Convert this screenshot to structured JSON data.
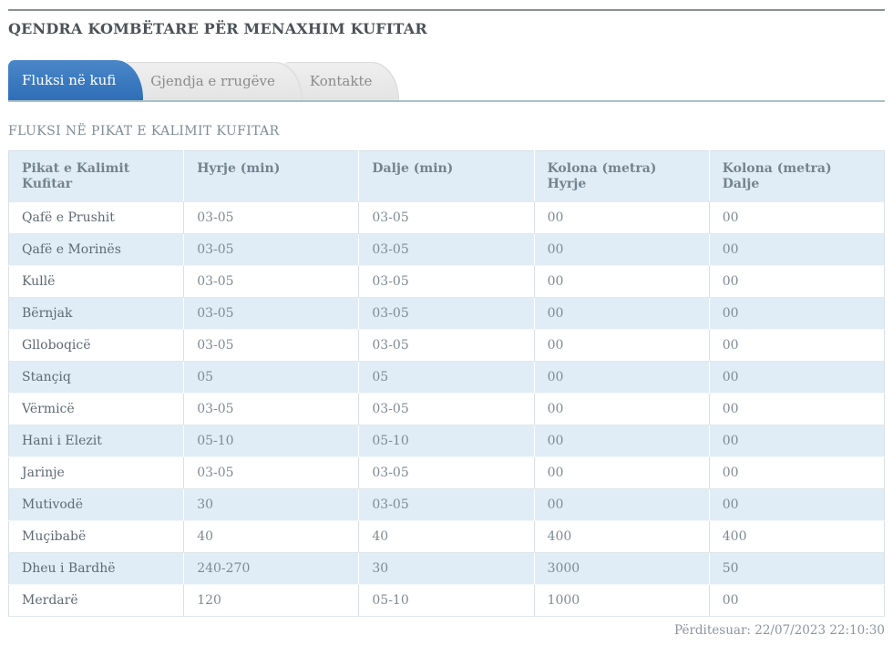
{
  "header": {
    "title": "QENDRA KOMBËTARE PËR MENAXHIM KUFITAR"
  },
  "tabs": [
    {
      "label": "Fluksi në kufi",
      "active": true
    },
    {
      "label": "Gjendja e rrugëve",
      "active": false
    },
    {
      "label": "Kontakte",
      "active": false
    }
  ],
  "section": {
    "title": "FLUKSI NË PIKAT E KALIMIT KUFITAR"
  },
  "table": {
    "columns": [
      {
        "label": "Pikat e Kalimit Kufitar",
        "sub": ""
      },
      {
        "label": "Hyrje (min)",
        "sub": ""
      },
      {
        "label": "Dalje (min)",
        "sub": ""
      },
      {
        "label": "Kolona (metra)",
        "sub": "Hyrje"
      },
      {
        "label": "Kolona (metra)",
        "sub": "Dalje"
      }
    ],
    "rows": [
      [
        "Qafë e Prushit",
        "03-05",
        "03-05",
        "00",
        "00"
      ],
      [
        "Qafë e Morinës",
        "03-05",
        "03-05",
        "00",
        "00"
      ],
      [
        "Kullë",
        "03-05",
        "03-05",
        "00",
        "00"
      ],
      [
        "Bërnjak",
        "03-05",
        "03-05",
        "00",
        "00"
      ],
      [
        "Glloboqicë",
        "03-05",
        "03-05",
        "00",
        "00"
      ],
      [
        "Stançiq",
        "05",
        "05",
        "00",
        "00"
      ],
      [
        "Vërmicë",
        "03-05",
        "03-05",
        "00",
        "00"
      ],
      [
        "Hani i Elezit",
        "05-10",
        "05-10",
        "00",
        "00"
      ],
      [
        "Jarinje",
        "03-05",
        "03-05",
        "00",
        "00"
      ],
      [
        "Mutivodë",
        "30",
        "03-05",
        "00",
        "00"
      ],
      [
        "Muçibabë",
        "40",
        "40",
        "400",
        "400"
      ],
      [
        "Dheu i Bardhë",
        "240-270",
        "30",
        "3000",
        "50"
      ],
      [
        "Merdarë",
        "120",
        "05-10",
        "1000",
        "00"
      ]
    ]
  },
  "footer": {
    "updated": "Përditesuar: 22/07/2023 22:10:30"
  },
  "colors": {
    "active_tab": "#3578bf",
    "tab_underline": "#a9bfca",
    "table_stripe": "#e0edf6",
    "title_text": "#4c5257",
    "muted_text": "#7e8c95"
  }
}
